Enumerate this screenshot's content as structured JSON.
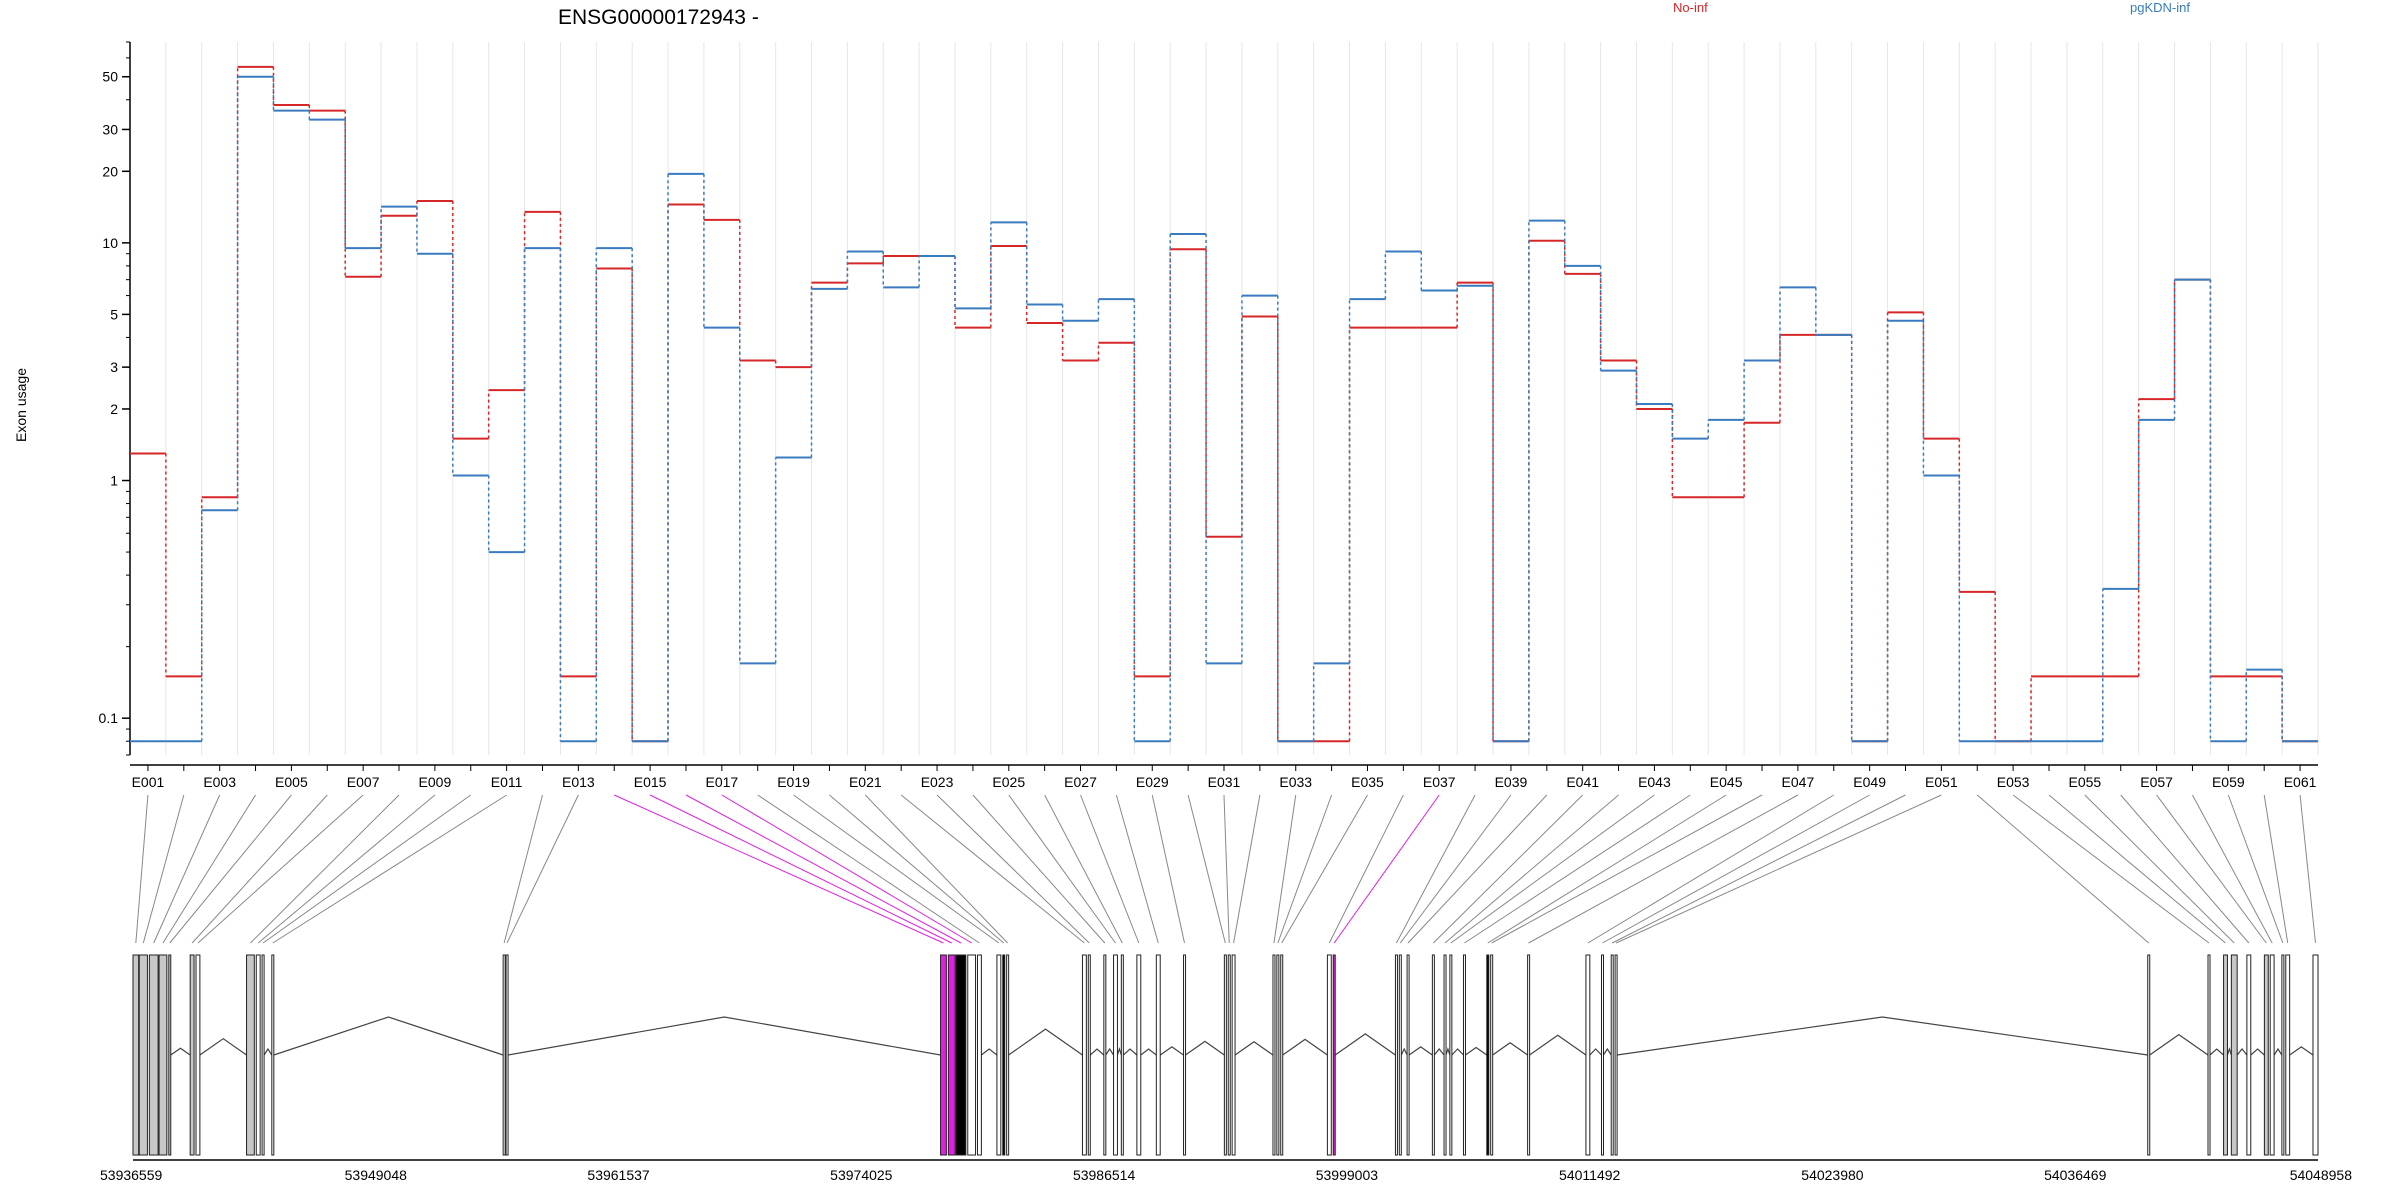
{
  "chart_data": {
    "type": "line",
    "title": "ENSG00000172943 -",
    "ylabel": "Exon usage",
    "xlabel": "",
    "yscale": "log",
    "ylim": [
      0.07,
      70
    ],
    "y_ticks": [
      0.1,
      1,
      2,
      3,
      5,
      10,
      20,
      30,
      50
    ],
    "y_tick_labels": [
      "0.1",
      "1",
      "2",
      "3",
      "5",
      "10",
      "20",
      "30",
      "50"
    ],
    "grid": true,
    "legend_placement": "top-right",
    "categories": [
      "E001",
      "E002",
      "E003",
      "E004",
      "E005",
      "E006",
      "E007",
      "E008",
      "E009",
      "E010",
      "E011",
      "E012",
      "E013",
      "E014",
      "E015",
      "E016",
      "E017",
      "E018",
      "E019",
      "E020",
      "E021",
      "E022",
      "E023",
      "E024",
      "E025",
      "E026",
      "E027",
      "E028",
      "E029",
      "E030",
      "E031",
      "E032",
      "E033",
      "E034",
      "E035",
      "E036",
      "E037",
      "E038",
      "E039",
      "E040",
      "E041",
      "E042",
      "E043",
      "E044",
      "E045",
      "E046",
      "E047",
      "E048",
      "E049",
      "E050",
      "E051",
      "E052",
      "E053",
      "E054",
      "E055",
      "E056",
      "E057",
      "E058",
      "E059",
      "E060",
      "E061"
    ],
    "x_tick_labels": [
      "E001",
      "E003",
      "E005",
      "E007",
      "E009",
      "E011",
      "E013",
      "E015",
      "E017",
      "E019",
      "E021",
      "E023",
      "E025",
      "E027",
      "E029",
      "E031",
      "E033",
      "E035",
      "E037",
      "E039",
      "E041",
      "E043",
      "E045",
      "E047",
      "E049",
      "E051",
      "E053",
      "E055",
      "E057",
      "E059",
      "E061"
    ],
    "series": [
      {
        "name": "No-inf",
        "color": "#d62728",
        "values": [
          1.3,
          0.15,
          0.85,
          55,
          38,
          36,
          7.2,
          13,
          15,
          1.5,
          2.4,
          13.5,
          0.15,
          7.8,
          0.08,
          14.5,
          12.5,
          3.2,
          3,
          6.8,
          8.2,
          8.8,
          8.8,
          4.4,
          9.7,
          4.6,
          3.2,
          3.8,
          0.15,
          9.4,
          0.58,
          4.9,
          0.08,
          0.08,
          4.4,
          4.4,
          4.4,
          6.8,
          0.08,
          10.2,
          7.4,
          3.2,
          2,
          0.85,
          0.85,
          1.75,
          4.1,
          4.1,
          0.08,
          5.1,
          1.5,
          0.34,
          0.08,
          0.15,
          0.15,
          0.15,
          2.2,
          7,
          0.15,
          0.15,
          0.08
        ]
      },
      {
        "name": "pgKDN-inf",
        "color": "#3a7bbf",
        "values": [
          0.08,
          0.08,
          0.75,
          50,
          36,
          33,
          9.5,
          14.2,
          9,
          1.05,
          0.5,
          9.5,
          0.08,
          9.5,
          0.08,
          19.5,
          4.4,
          0.17,
          1.25,
          6.4,
          9.2,
          6.5,
          8.8,
          5.3,
          12.2,
          5.5,
          4.7,
          5.8,
          0.08,
          10.9,
          0.17,
          6,
          0.08,
          0.17,
          5.8,
          9.2,
          6.3,
          6.6,
          0.08,
          12.4,
          8,
          2.9,
          2.1,
          1.5,
          1.8,
          3.2,
          6.5,
          4.1,
          0.08,
          4.7,
          1.05,
          0.08,
          0.08,
          0.08,
          0.08,
          0.35,
          1.8,
          7,
          0.08,
          0.16,
          0.08
        ]
      }
    ],
    "genomic_axis_labels": [
      "53936559",
      "53949048",
      "53961537",
      "53974025",
      "53986514",
      "53999003",
      "54011492",
      "54023980",
      "54036469",
      "54048958"
    ],
    "genomic_ticks": [
      53936559,
      53949048,
      53961537,
      53974025,
      53986514,
      53999003,
      54011492,
      54023980,
      54036469,
      54048958
    ],
    "exon_starts": [
      53936559,
      53936880,
      53937400,
      53937900,
      53938400,
      53939500,
      53939800,
      53942400,
      53942900,
      53943200,
      53943700,
      53955600,
      53955750,
      53978100,
      53978500,
      53978900,
      53979500,
      53980000,
      53981000,
      53981300,
      53981500,
      53985400,
      53985700,
      53986500,
      53987000,
      53987400,
      53988200,
      53989200,
      53990600,
      53992700,
      53992900,
      53993100,
      53995200,
      53995400,
      53995600,
      53998000,
      53998300,
      54001500,
      54001700,
      54002100,
      54003400,
      54004000,
      54004300,
      54005000,
      54006200,
      54006400,
      54008300,
      54011300,
      54012100,
      54012600,
      54012800,
      54040200,
      54043300,
      54044100,
      54044500,
      54045300,
      54046200,
      54046500,
      54047100,
      54047300,
      54048700
    ],
    "exon_ends": [
      53936850,
      53937300,
      53937850,
      53938300,
      53938500,
      53939700,
      53940000,
      53942800,
      53943100,
      53943300,
      53943800,
      53955700,
      53955850,
      53978400,
      53978850,
      53979400,
      53979900,
      53980200,
      53981200,
      53981400,
      53981600,
      53985600,
      53985800,
      53986600,
      53987200,
      53987500,
      53988400,
      53989400,
      53990700,
      53992800,
      53993000,
      53993250,
      53995300,
      53995500,
      53995700,
      53998200,
      53998400,
      54001600,
      54001800,
      54002200,
      54003500,
      54004100,
      54004400,
      54005100,
      54006300,
      54006500,
      54008400,
      54011500,
      54012200,
      54012700,
      54012900,
      54040300,
      54043400,
      54044300,
      54044800,
      54045500,
      54046400,
      54046700,
      54047200,
      54047500,
      54048958
    ],
    "exon_fill_types": [
      "gray",
      "gray",
      "gray",
      "gray",
      "gray",
      "gray",
      "white",
      "gray",
      "white",
      "white",
      "white",
      "white",
      "white",
      "magenta",
      "magenta",
      "black",
      "white",
      "white",
      "white",
      "black",
      "white",
      "white",
      "white",
      "white",
      "white",
      "white",
      "white",
      "white",
      "white",
      "white",
      "white",
      "white",
      "white",
      "white",
      "white",
      "white",
      "magenta",
      "white",
      "white",
      "white",
      "white",
      "white",
      "white",
      "white",
      "black",
      "white",
      "white",
      "white",
      "white",
      "white",
      "white",
      "white",
      "white",
      "gray",
      "gray",
      "white",
      "gray",
      "white",
      "white",
      "white",
      "white"
    ],
    "highlight_links": [
      13,
      14,
      15,
      16,
      36
    ]
  },
  "colors": {
    "no_inf": "#d62728",
    "pgkdn_inf": "#3a7bbf",
    "highlight": "#e020e0",
    "exon_gray": "#c8c8c8",
    "grid": "#e6e6e6"
  }
}
